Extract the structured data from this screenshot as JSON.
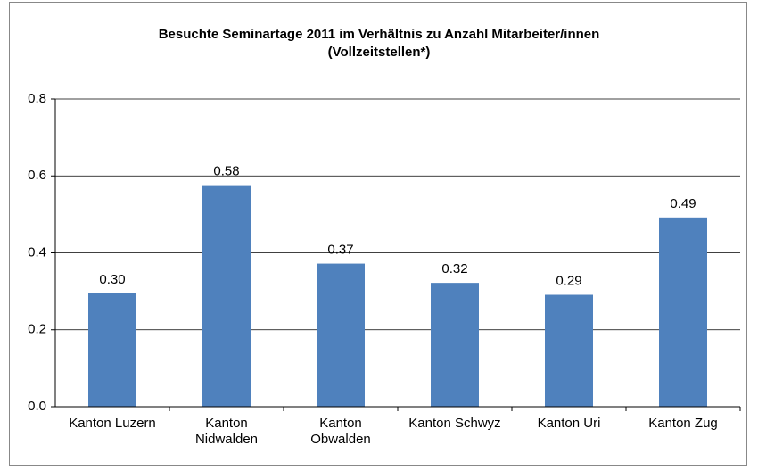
{
  "chart_data": {
    "type": "bar",
    "title": "Besuchte Seminartage 2011 im Verhältnis zu Anzahl Mitarbeiter/innen\n(Vollzeitstellen*)",
    "categories": [
      "Kanton Luzern",
      "Kanton\nNidwalden",
      "Kanton\nObwalden",
      "Kanton Schwyz",
      "Kanton Uri",
      "Kanton Zug"
    ],
    "values": [
      0.295,
      0.576,
      0.372,
      0.322,
      0.291,
      0.492
    ],
    "value_labels": [
      "0.30",
      "0.58",
      "0.37",
      "0.32",
      "0.29",
      "0.49"
    ],
    "color": "#4f81bd",
    "ylim": [
      0,
      0.8
    ],
    "yticks": [
      {
        "value": 0,
        "label": "0.0"
      },
      {
        "value": 0.2,
        "label": "0.2"
      },
      {
        "value": 0.4,
        "label": "0.4"
      },
      {
        "value": 0.6,
        "label": "0.6"
      },
      {
        "value": 0.8,
        "label": "0.8"
      }
    ],
    "grid": true
  }
}
